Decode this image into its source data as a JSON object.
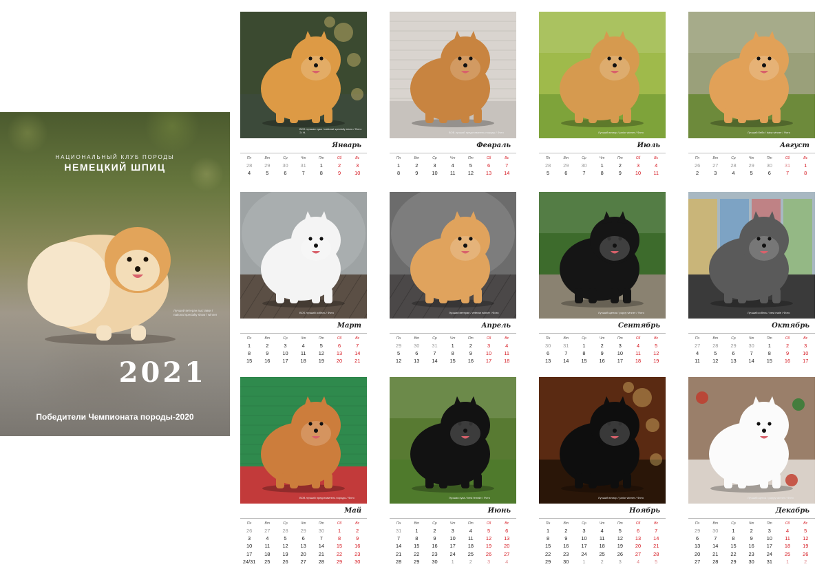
{
  "cover": {
    "club": "НАЦИОНАЛЬНЫЙ КЛУБ ПОРОДЫ",
    "breed": "НЕМЕЦКИЙ ШПИЦ",
    "year": "2021",
    "subtitle": "Победители Чемпионата породы-2020",
    "caption": "Лучший ветеран выставки / national specialty show / winner",
    "dog_color": "#e6b777"
  },
  "weekdays": [
    "Пн",
    "Вт",
    "Ср",
    "Чт",
    "Пт",
    "Сб",
    "Вс"
  ],
  "months": [
    {
      "name": "Январь",
      "photo": {
        "bg": "#3b4a30",
        "floor": "#3c4a3a",
        "dog": "#dd9a45",
        "scene": "bokeh"
      },
      "caption": "BOS лучшая сука / national specialty show / Фото: Э. Н.",
      "rows": [
        [
          "28",
          "29",
          "30",
          "31",
          "1",
          "2",
          "3"
        ],
        [
          "4",
          "5",
          "6",
          "7",
          "8",
          "9",
          "10"
        ]
      ],
      "first_offset": 4,
      "last_day": 10
    },
    {
      "name": "Февраль",
      "photo": {
        "bg": "#d9d4cf",
        "floor": "#c7c2bd",
        "dog": "#c88440",
        "scene": "studio"
      },
      "caption": "BOB лучший представитель породы / Фото",
      "rows": [
        [
          "1",
          "2",
          "3",
          "4",
          "5",
          "6",
          "7"
        ],
        [
          "8",
          "9",
          "10",
          "11",
          "12",
          "13",
          "14"
        ]
      ],
      "first_offset": 0,
      "last_day": 14
    },
    {
      "name": "Июль",
      "photo": {
        "bg": "#9fba4b",
        "floor": "#7ea33a",
        "dog": "#d69a4f",
        "scene": "lawn"
      },
      "caption": "Лучший юниор / junior winner / Фото",
      "rows": [
        [
          "28",
          "29",
          "30",
          "1",
          "2",
          "3",
          "4"
        ],
        [
          "5",
          "6",
          "7",
          "8",
          "9",
          "10",
          "11"
        ]
      ],
      "first_offset": 3,
      "last_day": 11
    },
    {
      "name": "Август",
      "photo": {
        "bg": "#9aa07a",
        "floor": "#6d8a3b",
        "dog": "#e1a158",
        "scene": "lawn"
      },
      "caption": "Лучший беби / baby winner / Фото",
      "rows": [
        [
          "26",
          "27",
          "28",
          "29",
          "30",
          "31",
          "1"
        ],
        [
          "2",
          "3",
          "4",
          "5",
          "6",
          "7",
          "8"
        ]
      ],
      "first_offset": 6,
      "last_day": 8
    },
    {
      "name": "Март",
      "photo": {
        "bg": "#9ea3a4",
        "floor": "#5b4f45",
        "dog": "#f4f4f4",
        "scene": "studio-dark"
      },
      "caption": "BOS лучший кобель / Фото",
      "rows": [
        [
          "1",
          "2",
          "3",
          "4",
          "5",
          "6",
          "7"
        ],
        [
          "8",
          "9",
          "10",
          "11",
          "12",
          "13",
          "14"
        ],
        [
          "15",
          "16",
          "17",
          "18",
          "19",
          "20",
          "21"
        ]
      ],
      "first_offset": 0,
      "last_day": 21
    },
    {
      "name": "Апрель",
      "photo": {
        "bg": "#6c6c6c",
        "floor": "#4b4848",
        "dog": "#e0a35d",
        "scene": "studio-dark"
      },
      "caption": "Лучший ветеран / veteran winner / Фото",
      "rows": [
        [
          "29",
          "30",
          "31",
          "1",
          "2",
          "3",
          "4"
        ],
        [
          "5",
          "6",
          "7",
          "8",
          "9",
          "10",
          "11"
        ],
        [
          "12",
          "13",
          "14",
          "15",
          "16",
          "17",
          "18"
        ]
      ],
      "first_offset": 3,
      "last_day": 18
    },
    {
      "name": "Сентябрь",
      "photo": {
        "bg": "#3d6b2c",
        "floor": "#8a8271",
        "dog": "#151515",
        "scene": "lawn"
      },
      "caption": "Лучший щенок / puppy winner / Фото",
      "rows": [
        [
          "30",
          "31",
          "1",
          "2",
          "3",
          "4",
          "5"
        ],
        [
          "6",
          "7",
          "8",
          "9",
          "10",
          "11",
          "12"
        ],
        [
          "13",
          "14",
          "15",
          "16",
          "17",
          "18",
          "19"
        ]
      ],
      "first_offset": 2,
      "last_day": 19
    },
    {
      "name": "Октябрь",
      "photo": {
        "bg": "#a8b8c2",
        "floor": "#3a3a3a",
        "dog": "#5a5a5a",
        "scene": "street"
      },
      "caption": "Лучший кобель / best male / Фото",
      "rows": [
        [
          "27",
          "28",
          "29",
          "30",
          "1",
          "2",
          "3"
        ],
        [
          "4",
          "5",
          "6",
          "7",
          "8",
          "9",
          "10"
        ],
        [
          "11",
          "12",
          "13",
          "14",
          "15",
          "16",
          "17"
        ]
      ],
      "first_offset": 4,
      "last_day": 17
    },
    {
      "name": "Май",
      "photo": {
        "bg": "#2f8a4d",
        "floor": "#c23a3a",
        "dog": "#cc7d3c",
        "scene": "studio"
      },
      "caption": "BOB лучший представитель породы / Фото",
      "rows": [
        [
          "26",
          "27",
          "28",
          "29",
          "30",
          "1",
          "2"
        ],
        [
          "3",
          "4",
          "5",
          "6",
          "7",
          "8",
          "9"
        ],
        [
          "10",
          "11",
          "12",
          "13",
          "14",
          "15",
          "16"
        ],
        [
          "17",
          "18",
          "19",
          "20",
          "21",
          "22",
          "23"
        ],
        [
          "24/31",
          "25",
          "26",
          "27",
          "28",
          "29",
          "30"
        ]
      ],
      "first_offset": 5,
      "last_day": 31
    },
    {
      "name": "Июнь",
      "photo": {
        "bg": "#587a32",
        "floor": "#4f7a2c",
        "dog": "#121212",
        "scene": "lawn"
      },
      "caption": "Лучшая сука / best female / Фото",
      "rows": [
        [
          "31",
          "1",
          "2",
          "3",
          "4",
          "5",
          "6"
        ],
        [
          "7",
          "8",
          "9",
          "10",
          "11",
          "12",
          "13"
        ],
        [
          "14",
          "15",
          "16",
          "17",
          "18",
          "19",
          "20"
        ],
        [
          "21",
          "22",
          "23",
          "24",
          "25",
          "26",
          "27"
        ],
        [
          "28",
          "29",
          "30",
          "1",
          "2",
          "3",
          "4"
        ]
      ],
      "first_offset": 1,
      "last_day": 30
    },
    {
      "name": "Ноябрь",
      "photo": {
        "bg": "#5a2a12",
        "floor": "#2a1608",
        "dog": "#0e0e0e",
        "scene": "bokeh"
      },
      "caption": "Лучший юниор / junior winner / Фото",
      "rows": [
        [
          "1",
          "2",
          "3",
          "4",
          "5",
          "6",
          "7"
        ],
        [
          "8",
          "9",
          "10",
          "11",
          "12",
          "13",
          "14"
        ],
        [
          "15",
          "16",
          "17",
          "18",
          "19",
          "20",
          "21"
        ],
        [
          "22",
          "23",
          "24",
          "25",
          "26",
          "27",
          "28"
        ],
        [
          "29",
          "30",
          "1",
          "2",
          "3",
          "4",
          "5"
        ]
      ],
      "first_offset": 0,
      "last_day": 30
    },
    {
      "name": "Декабрь",
      "photo": {
        "bg": "#9a7f6a",
        "floor": "#d9d0c8",
        "dog": "#fbfbfb",
        "scene": "xmas"
      },
      "caption": "Лучший щенок / puppy winner / Фото",
      "rows": [
        [
          "29",
          "30",
          "1",
          "2",
          "3",
          "4",
          "5"
        ],
        [
          "6",
          "7",
          "8",
          "9",
          "10",
          "11",
          "12"
        ],
        [
          "13",
          "14",
          "15",
          "16",
          "17",
          "18",
          "19"
        ],
        [
          "20",
          "21",
          "22",
          "23",
          "24",
          "25",
          "26"
        ],
        [
          "27",
          "28",
          "29",
          "30",
          "31",
          "1",
          "2"
        ]
      ],
      "first_offset": 2,
      "last_day": 31
    }
  ]
}
